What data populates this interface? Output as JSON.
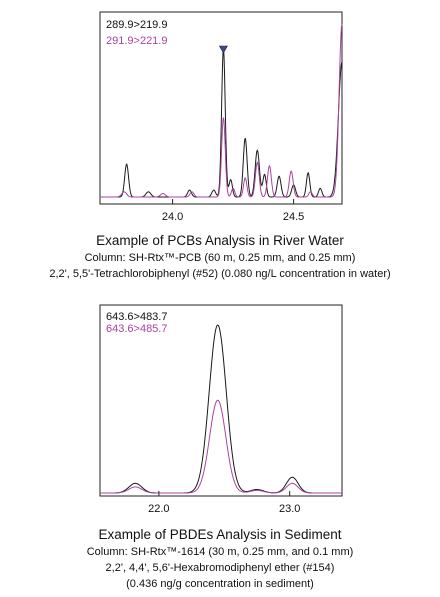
{
  "colors": {
    "black": "#1a1a1a",
    "purple": "#a8459f",
    "marker": "#3d4a8a"
  },
  "chart_data": [
    {
      "type": "line",
      "legend": [
        "289.9>219.9",
        "291.9>221.9"
      ],
      "xlim": [
        23.7,
        24.7
      ],
      "ylim": [
        0,
        1.0
      ],
      "x_ticks": [
        "24.0",
        "24.5"
      ],
      "x_tick_values": [
        24.0,
        24.5
      ],
      "marker_x": 24.21,
      "series": [
        {
          "name": "289.9>219.9",
          "color": "black",
          "peaks": [
            {
              "x": 23.81,
              "h": 0.19,
              "w": 0.008
            },
            {
              "x": 23.9,
              "h": 0.03,
              "w": 0.01
            },
            {
              "x": 24.07,
              "h": 0.04,
              "w": 0.008
            },
            {
              "x": 24.17,
              "h": 0.04,
              "w": 0.008
            },
            {
              "x": 24.21,
              "h": 0.86,
              "w": 0.0075
            },
            {
              "x": 24.24,
              "h": 0.1,
              "w": 0.007
            },
            {
              "x": 24.3,
              "h": 0.34,
              "w": 0.008
            },
            {
              "x": 24.35,
              "h": 0.27,
              "w": 0.009
            },
            {
              "x": 24.38,
              "h": 0.13,
              "w": 0.007
            },
            {
              "x": 24.44,
              "h": 0.12,
              "w": 0.008
            },
            {
              "x": 24.5,
              "h": 0.07,
              "w": 0.008
            },
            {
              "x": 24.56,
              "h": 0.14,
              "w": 0.007
            },
            {
              "x": 24.61,
              "h": 0.05,
              "w": 0.007
            },
            {
              "x": 24.7,
              "h": 0.78,
              "w": 0.015
            }
          ]
        },
        {
          "name": "291.9>221.9",
          "color": "purple",
          "peaks": [
            {
              "x": 23.8,
              "h": 0.03,
              "w": 0.01
            },
            {
              "x": 23.96,
              "h": 0.02,
              "w": 0.01
            },
            {
              "x": 24.08,
              "h": 0.03,
              "w": 0.008
            },
            {
              "x": 24.21,
              "h": 0.46,
              "w": 0.0075
            },
            {
              "x": 24.25,
              "h": 0.05,
              "w": 0.007
            },
            {
              "x": 24.3,
              "h": 0.11,
              "w": 0.007
            },
            {
              "x": 24.35,
              "h": 0.2,
              "w": 0.008
            },
            {
              "x": 24.4,
              "h": 0.18,
              "w": 0.008
            },
            {
              "x": 24.49,
              "h": 0.15,
              "w": 0.008
            },
            {
              "x": 24.57,
              "h": 0.03,
              "w": 0.007
            },
            {
              "x": 24.7,
              "h": 1.0,
              "w": 0.012
            }
          ]
        }
      ]
    },
    {
      "type": "line",
      "legend": [
        "643.6>483.7",
        "643.6>485.7"
      ],
      "xlim": [
        21.55,
        23.4
      ],
      "ylim": [
        0,
        1.0
      ],
      "x_ticks": [
        "22.0",
        "23.0"
      ],
      "x_tick_values": [
        22.0,
        23.0
      ],
      "series": [
        {
          "name": "643.6>483.7",
          "color": "black",
          "peaks": [
            {
              "x": 21.82,
              "h": 0.055,
              "w": 0.05
            },
            {
              "x": 22.45,
              "h": 0.96,
              "w": 0.065
            },
            {
              "x": 22.75,
              "h": 0.02,
              "w": 0.05
            },
            {
              "x": 23.02,
              "h": 0.09,
              "w": 0.045
            }
          ]
        },
        {
          "name": "643.6>485.7",
          "color": "purple",
          "peaks": [
            {
              "x": 21.82,
              "h": 0.035,
              "w": 0.05
            },
            {
              "x": 22.45,
              "h": 0.53,
              "w": 0.062
            },
            {
              "x": 22.75,
              "h": 0.015,
              "w": 0.05
            },
            {
              "x": 23.02,
              "h": 0.055,
              "w": 0.045
            }
          ]
        }
      ]
    }
  ],
  "captions": [
    {
      "title": "Example of PCBs Analysis in River Water",
      "lines": [
        "Column: SH-Rtx™-PCB (60 m, 0.25 mm, and 0.25 mm)",
        "2,2', 5,5'-Tetrachlorobiphenyl (#52) (0.080 ng/L concentration in water)"
      ]
    },
    {
      "title": "Example of PBDEs Analysis in Sediment",
      "lines": [
        "Column: SH-Rtx™-1614 (30 m, 0.25 mm, and 0.1 mm)",
        "2,2', 4,4', 5,6'-Hexabromodiphenyl ether (#154)",
        "(0.436 ng/g concentration in sediment)"
      ]
    }
  ]
}
